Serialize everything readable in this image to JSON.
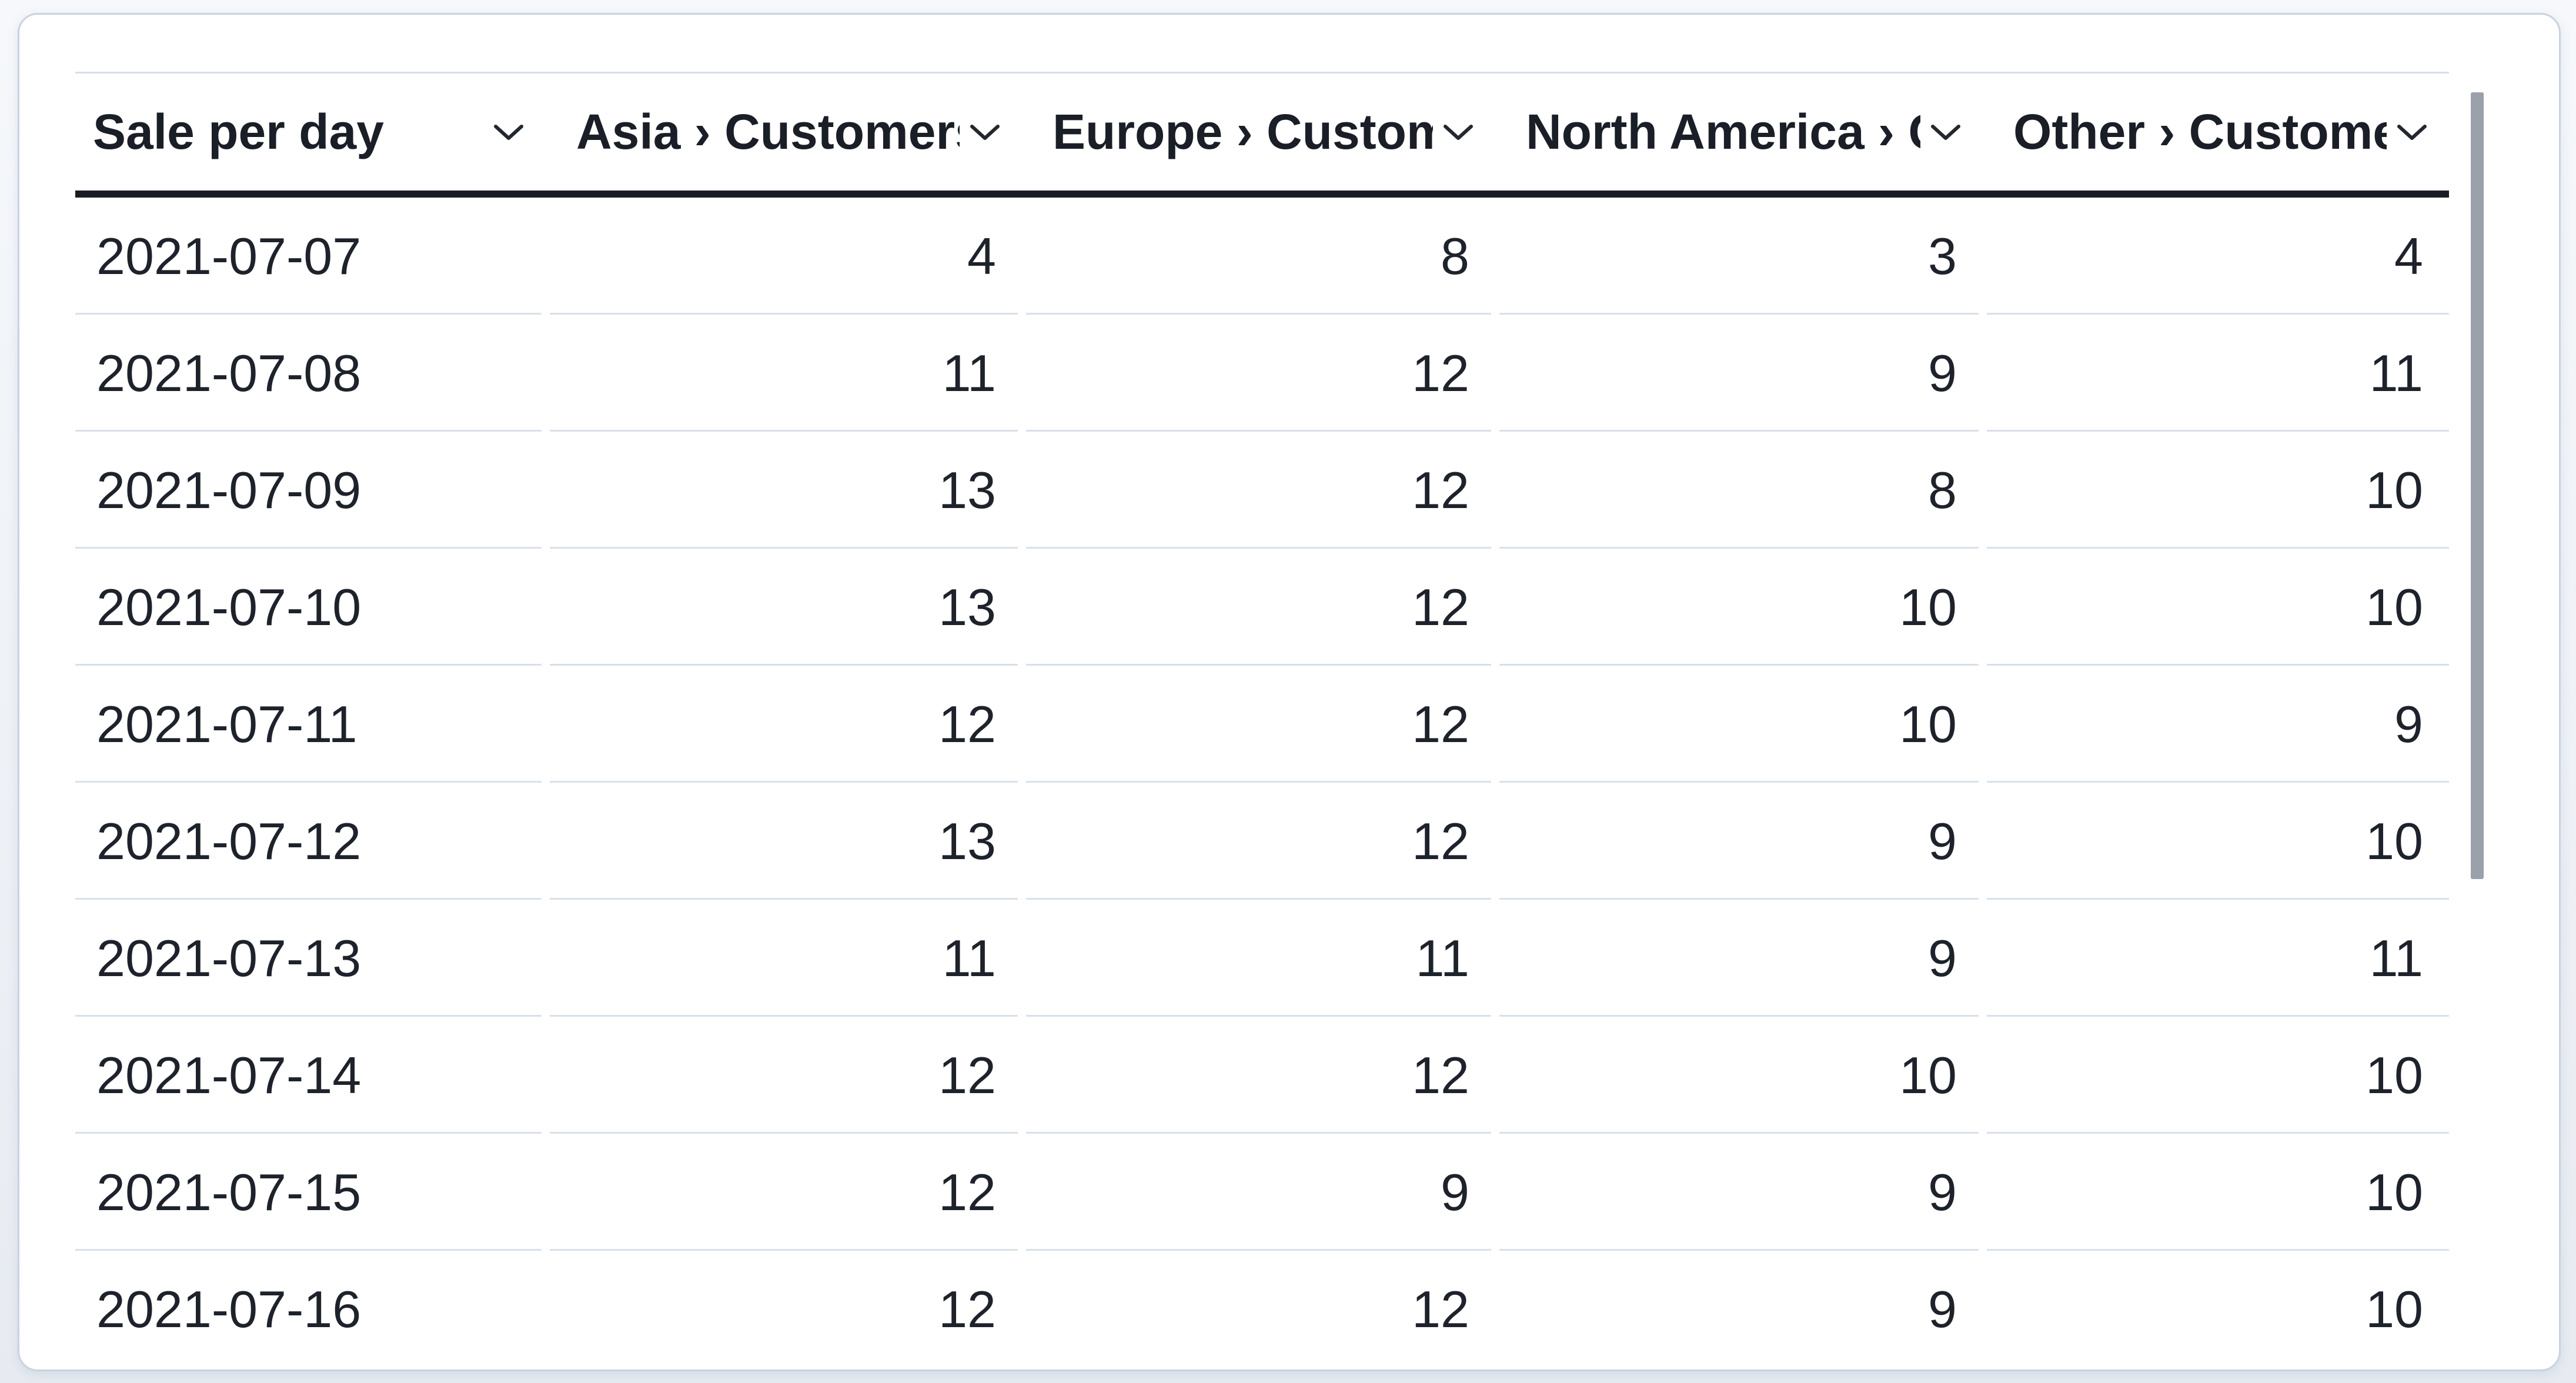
{
  "table": {
    "columns": [
      {
        "label": "Sale per day",
        "type": "date"
      },
      {
        "label": "Asia › Customers",
        "type": "number"
      },
      {
        "label": "Europe › Customers",
        "type": "number"
      },
      {
        "label": "North America › Customers",
        "type": "number"
      },
      {
        "label": "Other › Customers",
        "type": "number"
      }
    ],
    "rows": [
      {
        "date": "2021-07-07",
        "values": [
          4,
          8,
          3,
          4
        ]
      },
      {
        "date": "2021-07-08",
        "values": [
          11,
          12,
          9,
          11
        ]
      },
      {
        "date": "2021-07-09",
        "values": [
          13,
          12,
          8,
          10
        ]
      },
      {
        "date": "2021-07-10",
        "values": [
          13,
          12,
          10,
          10
        ]
      },
      {
        "date": "2021-07-11",
        "values": [
          12,
          12,
          10,
          9
        ]
      },
      {
        "date": "2021-07-12",
        "values": [
          13,
          12,
          9,
          10
        ]
      },
      {
        "date": "2021-07-13",
        "values": [
          11,
          11,
          9,
          11
        ]
      },
      {
        "date": "2021-07-14",
        "values": [
          12,
          12,
          10,
          10
        ]
      },
      {
        "date": "2021-07-15",
        "values": [
          12,
          9,
          9,
          10
        ]
      },
      {
        "date": "2021-07-16",
        "values": [
          12,
          12,
          9,
          10
        ]
      }
    ]
  },
  "icons": {
    "header_sort": "chevron-down-icon"
  },
  "colors": {
    "text": "#1d222b",
    "header_text": "#1a1e27",
    "header_rule": "#181c23",
    "row_separator": "#d9e0ea",
    "table_top_border": "#d8dfe9",
    "card_background": "#ffffff",
    "card_border": "#c9d3e0",
    "page_background": "#eef1f6",
    "scrollbar_thumb": "#9aa1ab"
  }
}
